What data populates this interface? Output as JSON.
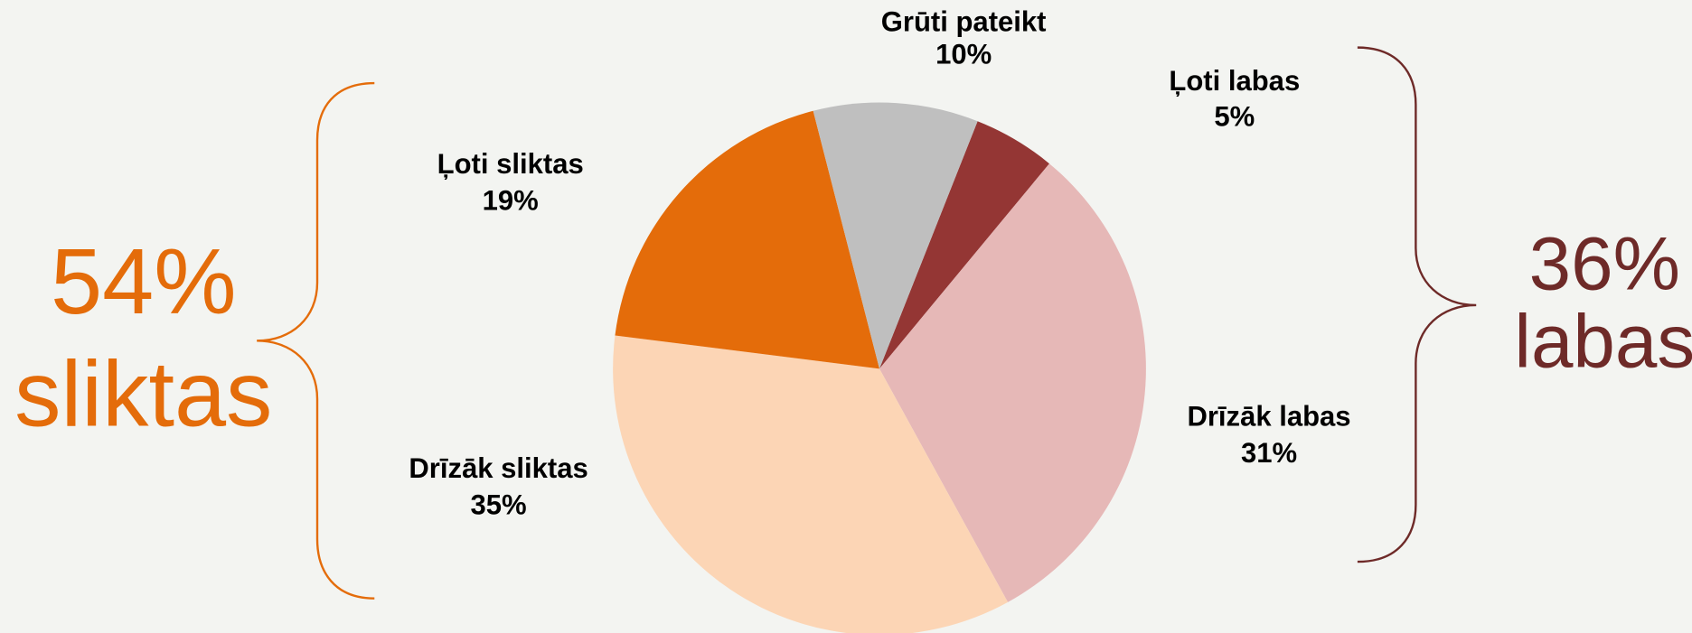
{
  "chart_data": {
    "type": "pie",
    "categories": [
      "Ļoti labas",
      "Drīzāk labas",
      "Drīzāk sliktas",
      "Ļoti sliktas",
      "Grūti pateikt"
    ],
    "values": [
      5,
      31,
      35,
      19,
      10
    ],
    "value_labels": [
      "5%",
      "31%",
      "35%",
      "19%",
      "10%"
    ],
    "colors": [
      "#943634",
      "#e6b8b7",
      "#fcd5b5",
      "#e46c0a",
      "#bfbfbf"
    ],
    "annotations": [
      "54%",
      "sliktas",
      "36%",
      "labas"
    ]
  }
}
